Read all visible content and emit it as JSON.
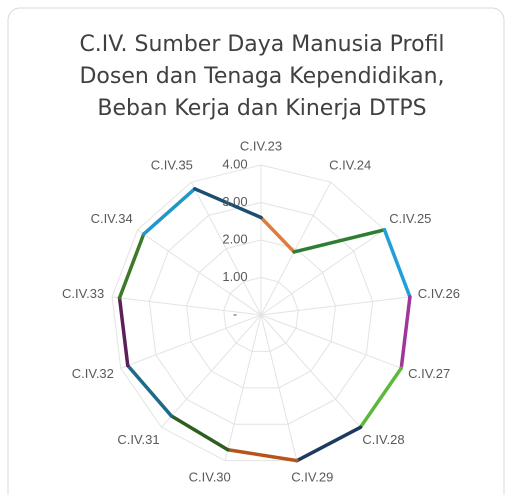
{
  "chart_data": {
    "type": "radar",
    "title": [
      "C.IV. Sumber Daya Manusia Profil",
      "Dosen dan Tenaga Kependidikan,",
      "Beban Kerja dan Kinerja DTPS"
    ],
    "categories": [
      "C.IV.23",
      "C.IV.24",
      "C.IV.25",
      "C.IV.26",
      "C.IV.27",
      "C.IV.28",
      "C.IV.29",
      "C.IV.30",
      "C.IV.31",
      "C.IV.32",
      "C.IV.33",
      "C.IV.34",
      "C.IV.35"
    ],
    "values": [
      2.6,
      1.9,
      4.0,
      4.0,
      4.0,
      4.0,
      4.0,
      3.7,
      3.6,
      3.8,
      3.8,
      3.8,
      3.8
    ],
    "segment_colors": [
      "#e07b39",
      "#2e7d32",
      "#1fa0d8",
      "#a0359c",
      "#5cb83c",
      "#1e3a5f",
      "#b5541b",
      "#2e5e1e",
      "#1d6a8a",
      "#5c1f5c",
      "#3d7a28",
      "#2196c9",
      "#1b4f72"
    ],
    "ylim": [
      0,
      4
    ],
    "yticks": [
      {
        "value": 0,
        "label": "-"
      },
      {
        "value": 1,
        "label": "1.00"
      },
      {
        "value": 2,
        "label": "2.00"
      },
      {
        "value": 3,
        "label": "3.00"
      },
      {
        "value": 4,
        "label": "4.00"
      }
    ],
    "grid": true
  }
}
